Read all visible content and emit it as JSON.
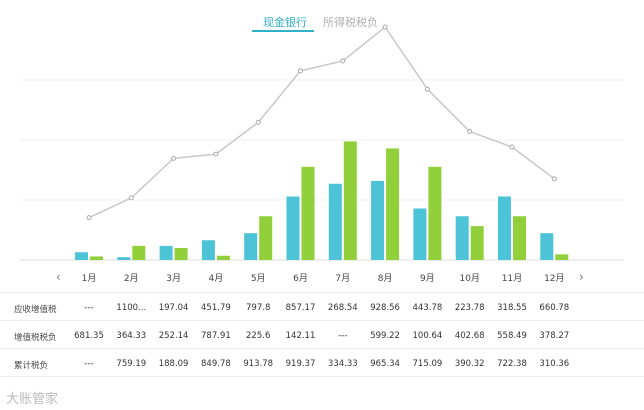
{
  "tabs": [
    {
      "label": "现金银行",
      "active": true
    },
    {
      "label": "所得税税负",
      "active": false
    }
  ],
  "nav": {
    "prev": "‹",
    "next": "›"
  },
  "colors": {
    "bar1": "#4dc3d7",
    "bar2": "#92d03b",
    "line": "#c8c8c8",
    "accent": "#2fb1c8"
  },
  "chart_data": {
    "type": "bar",
    "categories": [
      "1月",
      "2月",
      "3月",
      "4月",
      "5月",
      "6月",
      "7月",
      "8月",
      "9月",
      "10月",
      "11月",
      "12月"
    ],
    "series": [
      {
        "type": "bar",
        "values": [
          11,
          4,
          20,
          28,
          38,
          90,
          108,
          112,
          73,
          62,
          90,
          38
        ]
      },
      {
        "type": "bar",
        "values": [
          5,
          20,
          17,
          6,
          62,
          132,
          168,
          158,
          132,
          48,
          62,
          8
        ]
      },
      {
        "type": "line",
        "values": [
          60,
          88,
          144,
          150,
          195,
          268,
          282,
          330,
          242,
          182,
          160,
          115
        ]
      }
    ],
    "ylim": [
      0,
      340
    ],
    "grid": true
  },
  "table": {
    "rows": [
      {
        "label": "应收增值税",
        "cells": [
          "---",
          "1100...",
          "197.04",
          "451.79",
          "797.8",
          "857.17",
          "268.54",
          "928.56",
          "443.78",
          "223.78",
          "318.55",
          "660.78"
        ]
      },
      {
        "label": "增值税税负",
        "cells": [
          "681.35",
          "364.33",
          "252.14",
          "787.91",
          "225.6",
          "142.11",
          "---",
          "599.22",
          "100.64",
          "402.68",
          "558.49",
          "378.27"
        ]
      },
      {
        "label": "累计税负",
        "cells": [
          "---",
          "759.19",
          "188.09",
          "849.78",
          "913.78",
          "919.37",
          "334.33",
          "965.34",
          "715.09",
          "390.32",
          "722.38",
          "310.36"
        ]
      }
    ]
  },
  "watermark": "大账管家"
}
